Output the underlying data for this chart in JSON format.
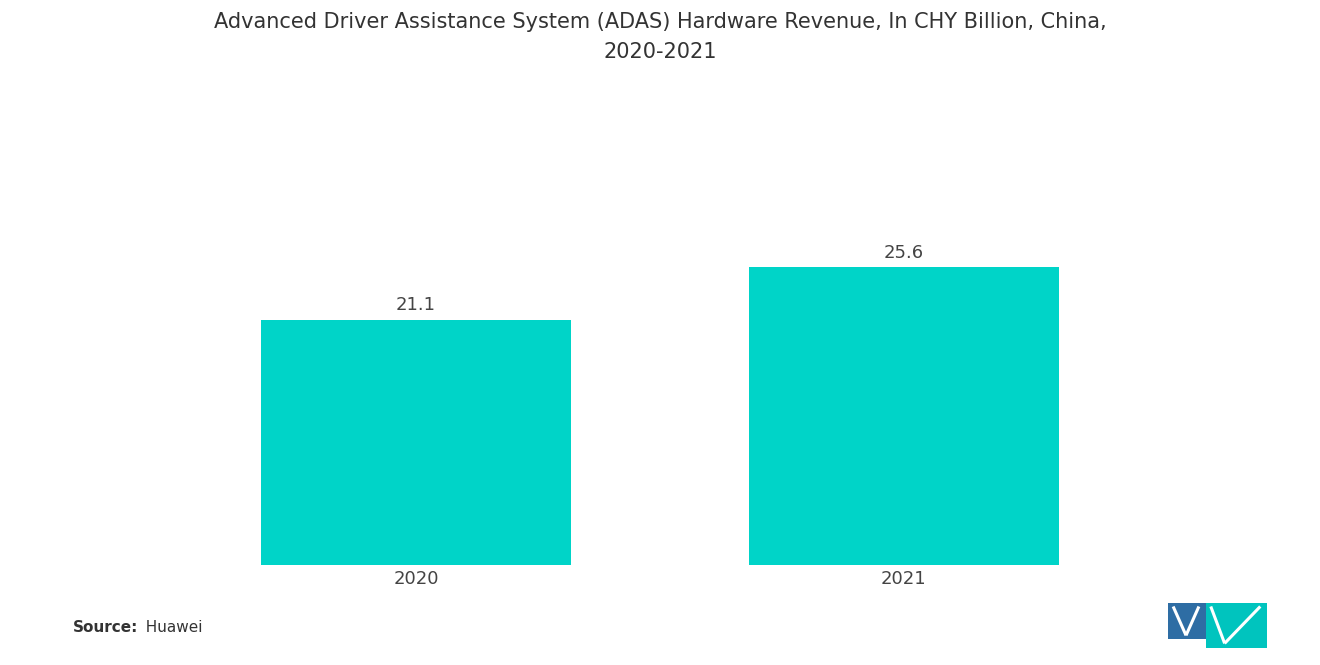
{
  "title": "Advanced Driver Assistance System (ADAS) Hardware Revenue, In CHY Billion, China,\n2020-2021",
  "categories": [
    "2020",
    "2021"
  ],
  "values": [
    21.1,
    25.6
  ],
  "bar_color": "#00D4C8",
  "background_color": "#ffffff",
  "title_fontsize": 15,
  "label_fontsize": 13,
  "value_fontsize": 13,
  "source_bold": "Source:",
  "source_normal": "  Huawei",
  "ylim": [
    0,
    40
  ],
  "bar_width": 0.28,
  "x_positions": [
    0.28,
    0.72
  ]
}
